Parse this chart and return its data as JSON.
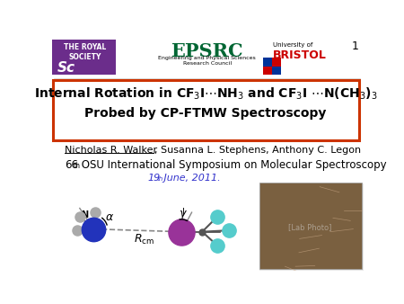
{
  "background_color": "#ffffff",
  "slide_number": "1",
  "title_line1": "Internal Rotation in CF$_3$I$\\cdots$NH$_3$ and CF$_3$I $\\cdots$N(CH$_3$)$_3$",
  "title_line2": "Probed by CP-FTMW Spectroscopy",
  "title_box_color": "#cc3300",
  "authors_underlined": "Nicholas R. Walker",
  "authors_rest": ", Susanna L. Stephens, Anthony C. Legon",
  "conference_num": "66",
  "conference_sup": "th",
  "conference_rest": " OSU International Symposium on Molecular Spectroscopy",
  "date_num": "19",
  "date_sup": "th",
  "date_rest": " June, 2011.",
  "date_color": "#3333cc",
  "text_color": "#000000"
}
